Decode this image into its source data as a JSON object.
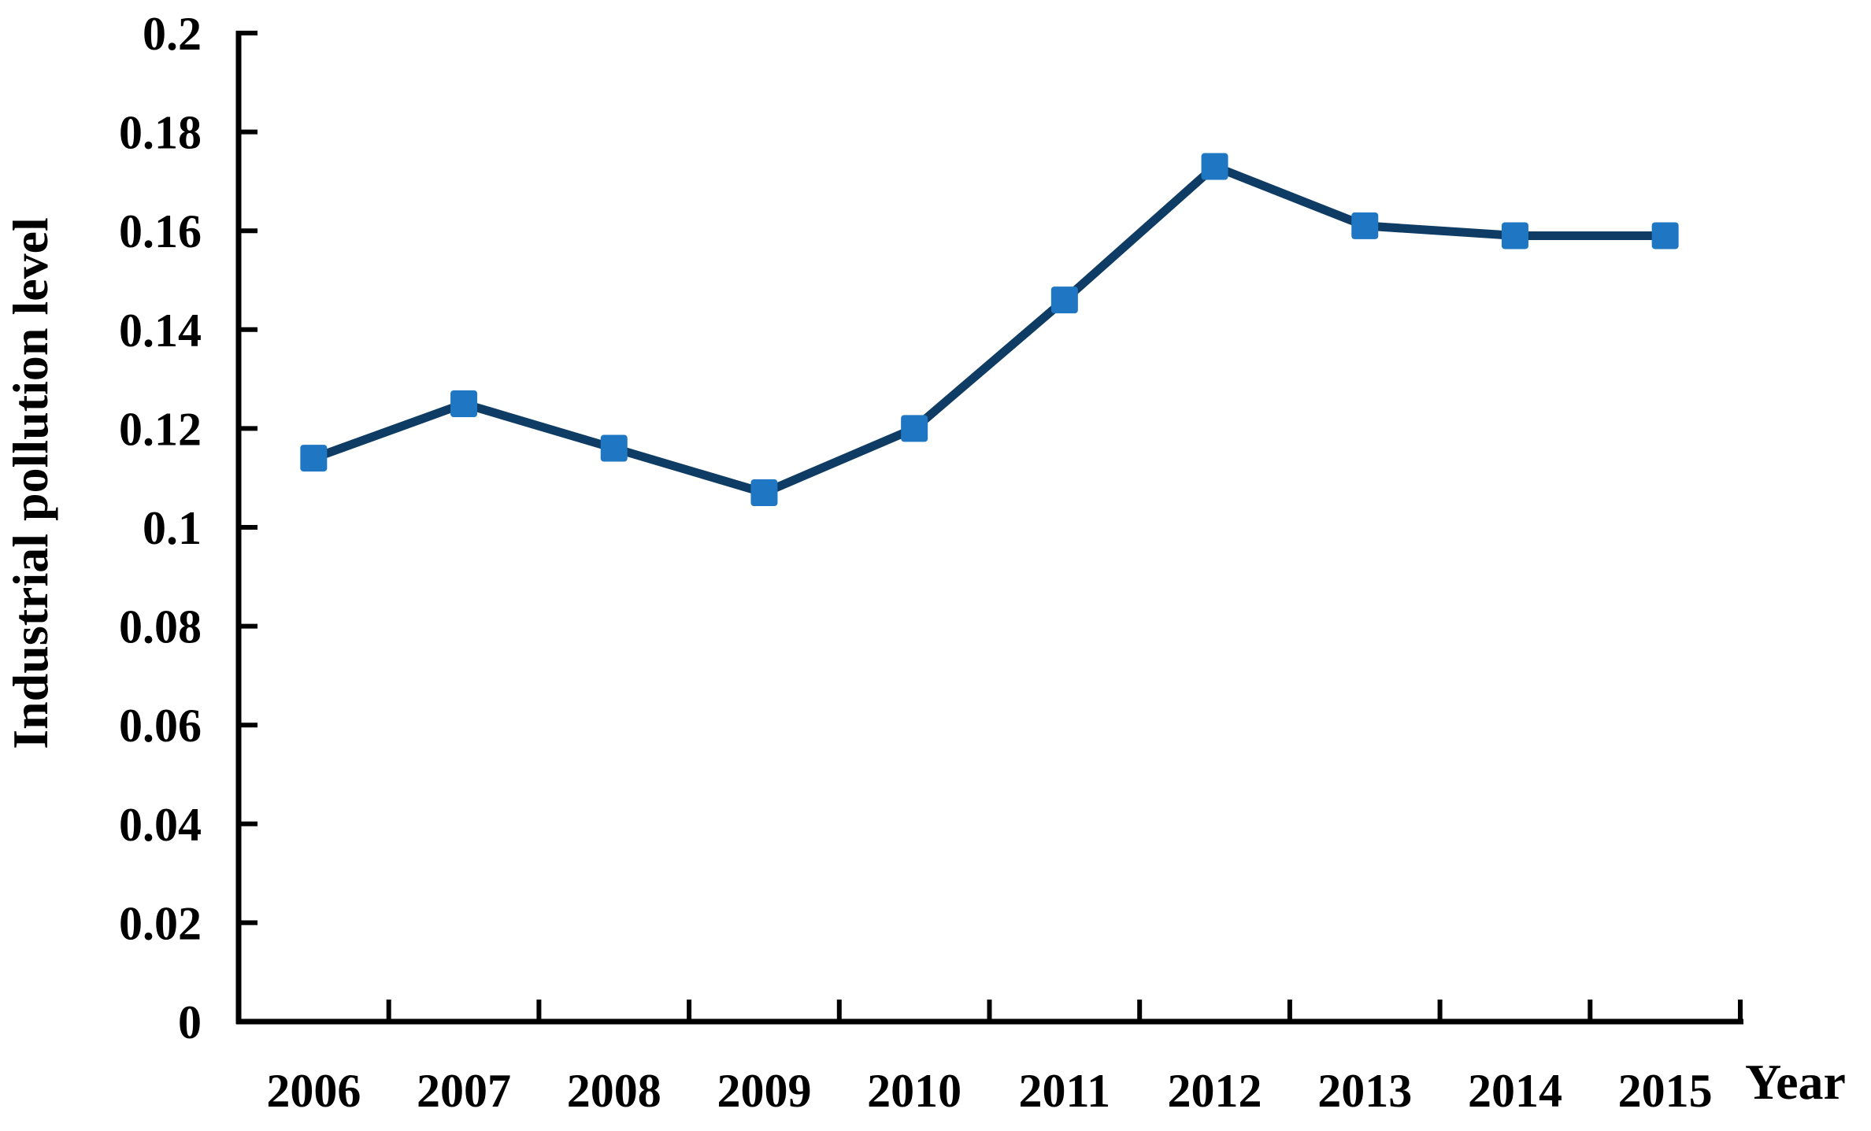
{
  "chart_data": {
    "type": "line",
    "title": "",
    "xlabel": "Year",
    "ylabel": "Industrial pollution level",
    "categories": [
      "2006",
      "2007",
      "2008",
      "2009",
      "2010",
      "2011",
      "2012",
      "2013",
      "2014",
      "2015"
    ],
    "series": [
      {
        "name": "Industrial pollution level",
        "values": [
          0.114,
          0.125,
          0.116,
          0.107,
          0.12,
          0.146,
          0.173,
          0.161,
          0.159,
          0.159
        ]
      }
    ],
    "ylim": [
      0,
      0.2
    ],
    "ytick_step": 0.02,
    "ytick_labels": [
      "0",
      "0.02",
      "0.04",
      "0.06",
      "0.08",
      "0.1",
      "0.12",
      "0.14",
      "0.16",
      "0.18",
      "0.2"
    ],
    "grid": false,
    "legend_position": "none",
    "line_color": "#0F3C64",
    "marker_color": "#1F76C2",
    "marker_shape": "square",
    "axis_color": "#000000"
  }
}
